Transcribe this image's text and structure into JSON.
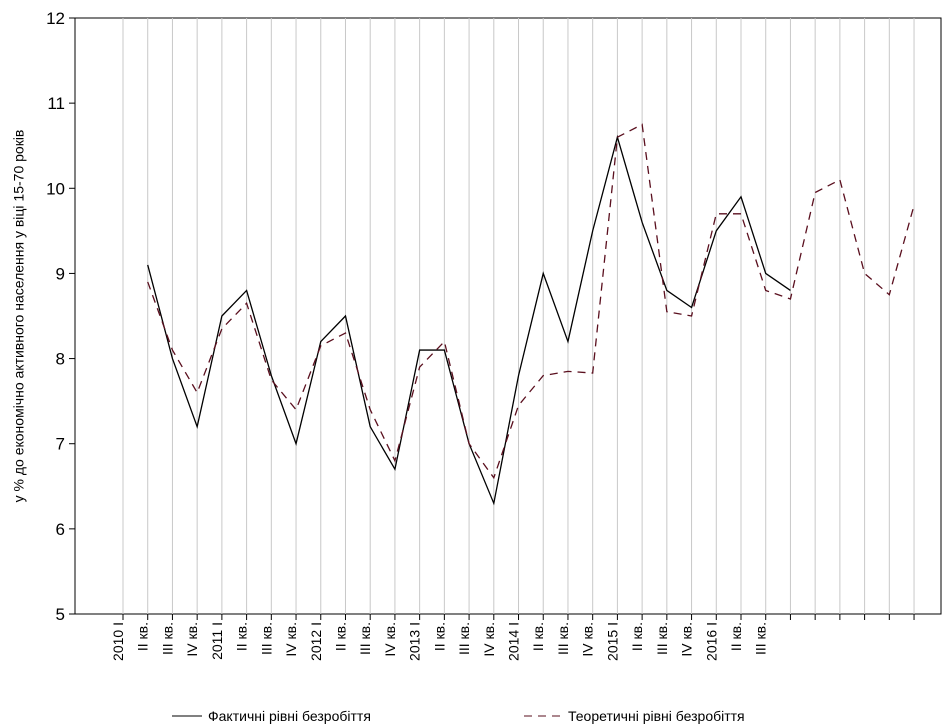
{
  "chart_data": {
    "type": "line",
    "y_label": "у % до економічно активного населення у віці 15-70 років",
    "categories": [
      "2010  I",
      "II кв.",
      "III кв.",
      "IV кв.",
      "2011  I",
      "II кв.",
      "III кв.",
      "IV кв.",
      "2012  I",
      "II кв.",
      "III кв.",
      "IV кв.",
      "2013  I",
      "II кв.",
      "III кв.",
      "IV кв.",
      "2014  I",
      "II кв.",
      "III кв.",
      "IV кв.",
      "2015  I",
      "II кв.",
      "III кв.",
      "IV кв.",
      "2016  I",
      "II кв.",
      "III кв.",
      null,
      null,
      null,
      null,
      null,
      null
    ],
    "series": [
      {
        "name": "Фактичні рівні безробіття",
        "color": "#000000",
        "dash": "solid",
        "values": [
          null,
          9.1,
          8.0,
          7.2,
          8.5,
          8.8,
          7.8,
          7.0,
          8.2,
          8.5,
          7.2,
          6.7,
          8.1,
          8.1,
          7.0,
          6.3,
          7.8,
          9.0,
          8.2,
          9.5,
          10.6,
          9.6,
          8.8,
          8.6,
          9.5,
          9.9,
          9.0,
          8.8,
          null,
          null,
          null,
          null,
          null
        ]
      },
      {
        "name": "Теоретичні рівні безробіття",
        "color": "#5a0f1e",
        "dash": "dashed",
        "values": [
          null,
          8.9,
          8.1,
          7.6,
          8.35,
          8.65,
          7.75,
          7.4,
          8.15,
          8.3,
          7.4,
          6.8,
          7.9,
          8.2,
          7.0,
          6.6,
          7.45,
          7.8,
          7.85,
          7.83,
          10.6,
          10.75,
          8.55,
          8.5,
          9.7,
          9.7,
          8.8,
          8.7,
          9.95,
          10.1,
          9.0,
          8.75,
          9.8
        ]
      }
    ],
    "ylim": [
      5,
      12
    ],
    "yticks": [
      5,
      6,
      7,
      8,
      9,
      10,
      11,
      12
    ],
    "grid": "vertical"
  }
}
